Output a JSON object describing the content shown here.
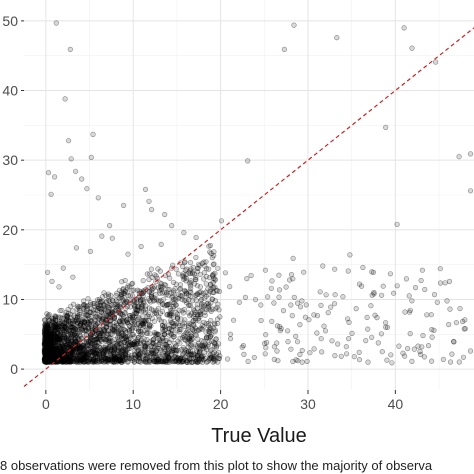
{
  "chart_data": {
    "type": "scatter",
    "xlabel": "True Value",
    "ylabel": "",
    "xlim": [
      -2.5,
      49
    ],
    "ylim": [
      -3,
      53
    ],
    "x_ticks": [
      0,
      10,
      20,
      30,
      40
    ],
    "y_ticks": [
      0,
      10,
      20,
      30,
      40,
      50
    ],
    "x_tick_labels": [
      "0",
      "10",
      "20",
      "30",
      "40"
    ],
    "y_tick_labels": [
      "0",
      "10",
      "20",
      "30",
      "40",
      "50"
    ],
    "caption": "8 observations were removed from this plot to show the majority of observa",
    "grid": true,
    "legend": "none",
    "reference_line": {
      "slope": 1,
      "intercept": 0,
      "style": "dashed",
      "color": "#cc2222"
    },
    "point_style": {
      "fill": "#000000",
      "fill_opacity": 0.15,
      "stroke": "#000000",
      "stroke_opacity": 0.45
    },
    "points": [
      [
        0.3,
        28.2
      ],
      [
        0.6,
        25.1
      ],
      [
        1.0,
        27.6
      ],
      [
        1.2,
        49.7
      ],
      [
        2.2,
        38.8
      ],
      [
        2.8,
        45.9
      ],
      [
        2.6,
        32.8
      ],
      [
        2.9,
        30.2
      ],
      [
        3.4,
        28.4
      ],
      [
        4.1,
        27.3
      ],
      [
        4.7,
        25.9
      ],
      [
        5.4,
        33.7
      ],
      [
        5.2,
        30.4
      ],
      [
        6.0,
        24.6
      ],
      [
        6.4,
        19.1
      ],
      [
        7.3,
        20.6
      ],
      [
        8.9,
        23.5
      ],
      [
        11.4,
        25.8
      ],
      [
        11.8,
        24.1
      ],
      [
        12.1,
        22.9
      ],
      [
        13.6,
        22.2
      ],
      [
        14.4,
        20.6
      ],
      [
        15.8,
        19.6
      ],
      [
        17.2,
        18.9
      ],
      [
        20.1,
        21.3
      ],
      [
        23.1,
        29.9
      ],
      [
        27.3,
        45.9
      ],
      [
        28.4,
        49.4
      ],
      [
        33.3,
        47.6
      ],
      [
        38.9,
        34.7
      ],
      [
        40.2,
        20.8
      ],
      [
        41.0,
        49.0
      ],
      [
        41.9,
        46.1
      ],
      [
        44.6,
        44.1
      ],
      [
        47.3,
        30.5
      ],
      [
        48.6,
        30.9
      ],
      [
        48.6,
        25.6
      ],
      [
        3.5,
        17.4
      ],
      [
        5.1,
        16.9
      ],
      [
        7.6,
        18.8
      ],
      [
        9.4,
        16.5
      ],
      [
        10.9,
        17.6
      ],
      [
        13.2,
        17.9
      ],
      [
        0.2,
        13.9
      ],
      [
        0.7,
        12.6
      ],
      [
        1.5,
        11.8
      ],
      [
        2.0,
        14.5
      ],
      [
        3.1,
        13.2
      ],
      [
        23.0,
        13.0
      ],
      [
        24.6,
        9.2
      ],
      [
        25.8,
        11.6
      ],
      [
        26.5,
        6.2
      ],
      [
        27.2,
        8.4
      ],
      [
        27.9,
        12.8
      ],
      [
        28.6,
        4.7
      ],
      [
        29.3,
        9.8
      ],
      [
        30.1,
        7.1
      ],
      [
        30.7,
        2.9
      ],
      [
        31.4,
        11.1
      ],
      [
        32.0,
        5.5
      ],
      [
        32.6,
        8.9
      ],
      [
        33.4,
        3.6
      ],
      [
        34.0,
        10.4
      ],
      [
        34.7,
        6.7
      ],
      [
        35.3,
        1.8
      ],
      [
        35.9,
        12.2
      ],
      [
        36.6,
        4.1
      ],
      [
        37.2,
        9.1
      ],
      [
        37.9,
        7.4
      ],
      [
        38.5,
        2.5
      ],
      [
        39.1,
        6.0
      ],
      [
        39.8,
        10.9
      ],
      [
        40.4,
        3.3
      ],
      [
        41.1,
        8.2
      ],
      [
        41.7,
        5.1
      ],
      [
        42.3,
        11.7
      ],
      [
        42.9,
        2.1
      ],
      [
        43.6,
        7.8
      ],
      [
        44.2,
        4.6
      ],
      [
        44.8,
        9.6
      ],
      [
        45.5,
        1.4
      ],
      [
        46.1,
        6.4
      ],
      [
        46.7,
        3.9
      ],
      [
        47.4,
        8.7
      ],
      [
        48.0,
        5.8
      ],
      [
        48.6,
        2.6
      ],
      [
        28.3,
        15.9
      ],
      [
        31.7,
        14.8
      ],
      [
        34.8,
        16.4
      ],
      [
        37.5,
        13.9
      ],
      [
        43.1,
        14.2
      ],
      [
        46.2,
        12.6
      ],
      [
        25.1,
        2.2
      ],
      [
        29.9,
        1.1
      ],
      [
        39.6,
        0.9
      ],
      [
        47.8,
        1.7
      ]
    ]
  }
}
